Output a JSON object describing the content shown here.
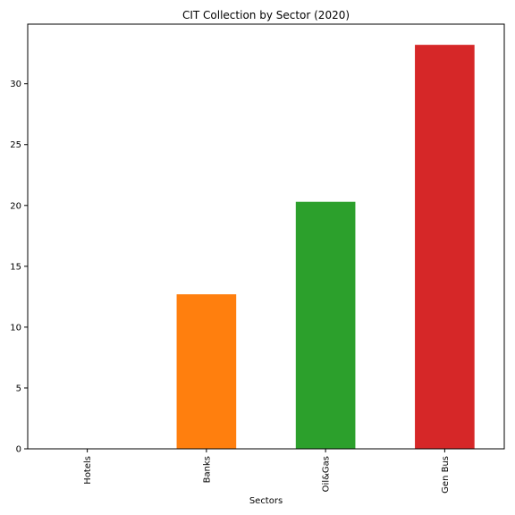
{
  "chart_data": {
    "type": "bar",
    "title": "CIT Collection by Sector (2020)",
    "xlabel": "Sectors",
    "ylabel": "",
    "categories": [
      "Hotels",
      "Banks",
      "Oil&Gas",
      "Gen Bus"
    ],
    "values": [
      0.0,
      12.7,
      20.3,
      33.2
    ],
    "colors": [
      "#1f77b4",
      "#ff7f0e",
      "#2ca02c",
      "#d62728"
    ],
    "ylim": [
      0,
      34.9
    ],
    "yticks": [
      0,
      5,
      10,
      15,
      20,
      25,
      30
    ],
    "grid": false,
    "legend": "none"
  }
}
